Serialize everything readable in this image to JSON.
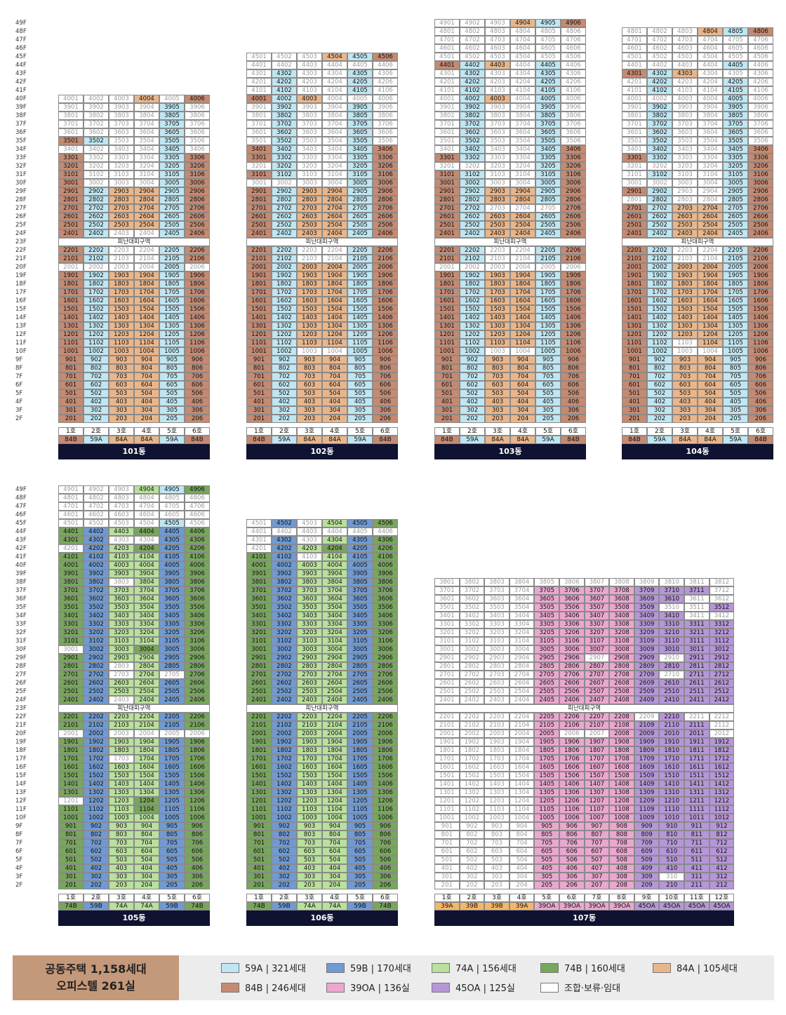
{
  "colors": {
    "59A": "#bfe6f2",
    "59B": "#6f9ad4",
    "74A": "#b9e09c",
    "74B": "#78a65c",
    "84A": "#e9b68b",
    "84B": "#c58a72",
    "39OA": "#eaa7cf",
    "45OA": "#b696d8",
    "S": "#ffffff"
  },
  "floor_labels": [
    "49F",
    "48F",
    "47F",
    "46F",
    "45F",
    "44F",
    "43F",
    "42F",
    "41F",
    "40F",
    "39F",
    "38F",
    "37F",
    "36F",
    "35F",
    "34F",
    "33F",
    "32F",
    "31F",
    "30F",
    "29F",
    "28F",
    "27F",
    "26F",
    "25F",
    "24F",
    "23F",
    "22F",
    "21F",
    "20F",
    "19F",
    "18F",
    "17F",
    "16F",
    "15F",
    "14F",
    "13F",
    "12F",
    "11F",
    "10F",
    "9F",
    "8F",
    "7F",
    "6F",
    "5F",
    "4F",
    "3F",
    "2F"
  ],
  "refuge_label": "피난대피구역",
  "buildings": [
    {
      "name": "101동",
      "top_floor": 40,
      "units": 6,
      "type_codes": [
        "84B",
        "59A",
        "84A",
        "84A",
        "59A",
        "84B"
      ],
      "unit_labels": [
        "1호",
        "2호",
        "3호",
        "4호",
        "5호",
        "6호"
      ],
      "type_labels": [
        "84B",
        "59A",
        "84A",
        "84A",
        "59A",
        "84B"
      ],
      "overrides": {
        "40": "SSSASB",
        "39": "SSSSAS",
        "38": "SSSSAS",
        "37": "SSSSAS",
        "36": "SSSSAS",
        "35": "BASSAS",
        "34": "SSSSAS",
        "33": "BSSSAB",
        "32": "BSSSAB",
        "31": "BSSSAB",
        "30": "BSSSAB",
        "24": "BASSAB",
        "22": "BASSAB",
        "21": "BASSAB",
        "20": "SSSSAS"
      }
    },
    {
      "name": "102동",
      "top_floor": 45,
      "units": 6,
      "type_codes": [
        "84B",
        "59A",
        "84A",
        "84A",
        "59A",
        "84B"
      ],
      "unit_labels": [
        "1호",
        "2호",
        "3호",
        "4호",
        "5호",
        "6호"
      ],
      "type_labels": [
        "84B",
        "59A",
        "84A",
        "84A",
        "59A",
        "84B"
      ],
      "overrides": {
        "45": "SSSAAB",
        "44": "SSSSSS",
        "43": "SASSAS",
        "42": "SASSAS",
        "41": "SASSAS",
        "40": "BAASSS",
        "39": "SASSAS",
        "38": "SASSAS",
        "37": "SASSAS",
        "36": "SASSAS",
        "35": "SASSAS",
        "34": "BASSAB",
        "33": "BASSAB",
        "32": "SASSAB",
        "31": "BASSAB",
        "30": "SSSSAB",
        "22": "BASSAB",
        "21": "BASSAB",
        "20": "BAAAAB",
        "10": "BASSAB"
      }
    },
    {
      "name": "103동",
      "top_floor": 49,
      "units": 6,
      "type_codes": [
        "84B",
        "59A",
        "84A",
        "84A",
        "59A",
        "84B"
      ],
      "unit_labels": [
        "1호",
        "2호",
        "3호",
        "4호",
        "5호",
        "6호"
      ],
      "type_labels": [
        "84B",
        "59A",
        "84A",
        "84A",
        "59A",
        "84B"
      ],
      "overrides": {
        "49": "SSSAAB",
        "48": "SSSSSS",
        "47": "SSSSSS",
        "46": "SSSSSS",
        "45": "SSSSSS",
        "44": "BAASAS",
        "43": "SASSAS",
        "42": "SASSAS",
        "41": "SASSAS",
        "40": "SAASAS",
        "39": "SASSAS",
        "38": "SASSAS",
        "37": "SASSAS",
        "36": "SASSAS",
        "35": "SASSAS",
        "34": "SASSAB",
        "33": "BASSAB",
        "32": "SSSSAB",
        "31": "BASSAB",
        "30": "BASSAB",
        "27": "BASSSB",
        "22": "BASSAB",
        "21": "BASSAB",
        "20": "SSSSSS",
        "10": "BASSAB"
      }
    },
    {
      "name": "104동",
      "top_floor": 48,
      "units": 6,
      "type_codes": [
        "84B",
        "59A",
        "84A",
        "84A",
        "59A",
        "84B"
      ],
      "unit_labels": [
        "1호",
        "2호",
        "3호",
        "4호",
        "5호",
        "6호"
      ],
      "type_labels": [
        "84B",
        "59A",
        "84A",
        "84A",
        "59A",
        "84B"
      ],
      "overrides": {
        "48": "SSSAAB",
        "47": "SSSSSS",
        "46": "SSSSSS",
        "45": "SSSSSS",
        "44": "SSSSAS",
        "43": "BAASSS",
        "42": "SASSAS",
        "41": "SASSAS",
        "40": "SSSSAS",
        "39": "SASSAS",
        "38": "SASSAS",
        "37": "SASSAS",
        "36": "SASSAS",
        "35": "SASSAS",
        "34": "SASSAB",
        "33": "BASSAB",
        "32": "SSSSAB",
        "31": "SASSAB",
        "30": "SSSSAB",
        "29": "BASSAB",
        "28": "SASSAB",
        "22": "BASSAB",
        "21": "BASSAB",
        "20": "BAAAAB",
        "13": "BAAAAB",
        "11": "BASAAB",
        "10": "BASSAB"
      }
    },
    {
      "name": "105동",
      "top_floor": 49,
      "units": 6,
      "type_codes": [
        "74B",
        "59B",
        "74A",
        "74A",
        "59B",
        "74B"
      ],
      "unit_labels": [
        "1호",
        "2호",
        "3호",
        "4호",
        "5호",
        "6호"
      ],
      "type_labels": [
        "74B",
        "59B",
        "74A",
        "74A",
        "59B",
        "74B"
      ],
      "overrides": {
        "49": "SSSAAB",
        "48": "SSSSSS",
        "47": "SSSSSS",
        "46": "SSSSSS",
        "45": "SSSSAS",
        "44": "BBABBB",
        "43": "BBSSBB",
        "42": "SBABBB",
        "38": "BBSABB",
        "30": "SBABBB",
        "28": "BBSABB",
        "27": "BBSASB",
        "24": "BBSABB",
        "20": "SBSSSS",
        "17": "BBSABB",
        "12": "SBABBB",
        "11": "BBABBB"
      }
    },
    {
      "name": "106동",
      "top_floor": 45,
      "units": 6,
      "type_codes": [
        "74B",
        "59B",
        "74A",
        "74A",
        "59B",
        "74B"
      ],
      "unit_labels": [
        "1호",
        "2호",
        "3호",
        "4호",
        "5호",
        "6호"
      ],
      "type_labels": [
        "74B",
        "59B",
        "74A",
        "74A",
        "59B",
        "74B"
      ],
      "overrides": {
        "45": "SBSABB",
        "44": "SSSSSS",
        "43": "SBSABB",
        "42": "SBABBB",
        "41": "BBSABB",
        "20": "BBAABB"
      }
    },
    {
      "name": "107동",
      "top_floor": 38,
      "units": 12,
      "type_codes": [
        "39A",
        "39B",
        "39B",
        "39A",
        "39O",
        "39O",
        "39O",
        "39O",
        "45O",
        "45O",
        "45O",
        "45O"
      ],
      "unit_labels": [
        "1호",
        "2호",
        "3호",
        "4호",
        "5호",
        "6호",
        "7호",
        "8호",
        "9호",
        "10호",
        "11호",
        "12호"
      ],
      "type_labels": [
        "39A",
        "39B",
        "39B",
        "39A",
        "39OA",
        "39OA",
        "39OA",
        "39OA",
        "45OA",
        "45OA",
        "45OA",
        "45OA"
      ],
      "overrides": {
        "38": "SSSSXXXXXXXX",
        "37": "SSSSPPPPQQQS",
        "36": "SSSSPPPPQQSS",
        "35": "SSSSPPPPQSSQ",
        "34": "SSSSPPPPQQSS",
        "33": "SSSSPPPPQQQQ",
        "32": "SSSSPPPPQQQQ",
        "31": "SSSSPPPPQQQQ",
        "30": "SSSSPPPPQQQQ",
        "29": "SSSSPPSPQSQQ",
        "28": "SSSSPPPPQQQQ",
        "27": "SSSSPPPPQSQQ",
        "26": "SSSSPPPPQQQQ",
        "25": "SSSSPPPPQQQQ",
        "24": "SSSSPPPPQQQQ",
        "22": "SSSSPPPPSQSS",
        "21": "SSSSPPPPQQQS",
        "20": "SSSSPSSPQQQS",
        "19": "SSSSPPPPQQQQ",
        "18": "SSSSPPPPQQQQ",
        "17": "SSSSPPPPQQQQ",
        "16": "SSSSPPPPQQQQ",
        "15": "SSSSPPPPQQQQ",
        "14": "SSSSPPPPQQQQ",
        "13": "SSSSPPPPQQQQ",
        "12": "SSSSPPPPQQQQ",
        "11": "SSSSPPPPQQQQ",
        "10": "SSSSPPPPQQQQ",
        "9": "SSSSPPPPQQQQ",
        "8": "SSSSPPPPQQQQ",
        "7": "SSSSPPPPQQQQ",
        "6": "SSSSPPPPQQQQ",
        "5": "SSSSPPPPQQQQ",
        "4": "SSSSPPPPQQQQ",
        "3": "SSSSPPPPQSQQ",
        "2": "SSSSPPPPQQQQ"
      }
    }
  ],
  "footer_colors": {
    "39A": "#f4b66a",
    "39B": "#f4b66a",
    "39OA": "#eaa7cf",
    "45OA": "#b696d8"
  },
  "legend": {
    "title_line1": "공동주택 1,158세대",
    "title_line2": "오피스텔 261실",
    "items": [
      {
        "key": "59A",
        "label": "59A | 321세대"
      },
      {
        "key": "59B",
        "label": "59B | 170세대"
      },
      {
        "key": "74A",
        "label": "74A | 156세대"
      },
      {
        "key": "74B",
        "label": "74B | 160세대"
      },
      {
        "key": "84A",
        "label": "84A | 105세대"
      },
      {
        "key": "84B",
        "label": "84B | 246세대"
      },
      {
        "key": "39OA",
        "label": "39OA | 136실"
      },
      {
        "key": "45OA",
        "label": "45OA | 125실"
      },
      {
        "key": "S",
        "label": "조합·보류·임대"
      }
    ]
  }
}
